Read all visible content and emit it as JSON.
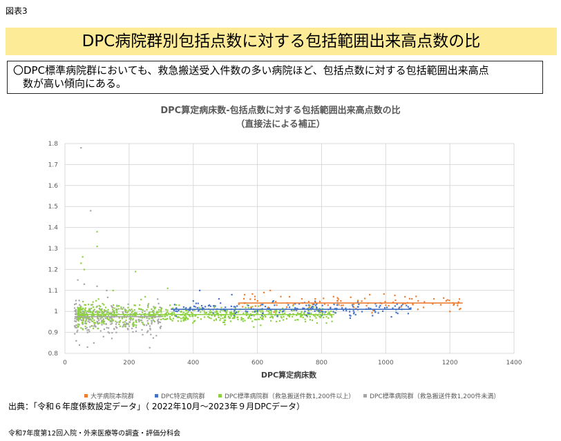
{
  "header": {
    "figure_label": "図表3"
  },
  "title_band": {
    "text": "DPC病院群別包括点数に対する包括範囲出来高点数の比"
  },
  "summary": {
    "line1": "〇DPC標準病院群においても、救急搬送受入件数の多い病院ほど、包括点数に対する包括範囲出来高点",
    "line2": "数が高い傾向にある。"
  },
  "source_note": "出典：「令和６年度係数設定データ」（ 2022年10月～2023年９月DPCデータ）",
  "footer": {
    "text": "令和7年度第12回入院・外来医療等の調査・評価分科会"
  },
  "colors": {
    "series_orange": "#ed7d31",
    "series_blue": "#4472c4",
    "series_green": "#8dd142",
    "series_gray": "#a6a6a6",
    "band": "#fdeb97"
  },
  "chart_data": {
    "type": "scatter",
    "title": "DPC算定病床数-包括点数に対する包括範囲出来高点数の比",
    "subtitle": "（直接法による補正）",
    "xlabel": "DPC算定病床数",
    "ylabel": "",
    "xlim": [
      0,
      1400
    ],
    "ylim": [
      0.8,
      1.8
    ],
    "x_ticks": [
      "0",
      "200",
      "400",
      "600",
      "800",
      "1000",
      "1200",
      "1400"
    ],
    "y_ticks": [
      "0.8",
      "0.9",
      "1",
      "1.1",
      "1.2",
      "1.3",
      "1.4",
      "1.5",
      "1.6",
      "1.7",
      "1.8"
    ],
    "grid": true,
    "legend_position": "bottom",
    "series": [
      {
        "name": "大学病院本院群",
        "color": "#ed7d31",
        "x_range": [
          540,
          1240
        ],
        "y_mean": 1.04,
        "y_spread": 0.04,
        "trend": [
          [
            540,
            1.04
          ],
          [
            1240,
            1.04
          ]
        ],
        "points": [
          [
            560,
            1.08
          ],
          [
            600,
            1.05
          ],
          [
            620,
            1.09
          ],
          [
            640,
            1.1
          ],
          [
            700,
            1.07
          ],
          [
            740,
            1.04
          ],
          [
            780,
            1.06
          ],
          [
            820,
            1.03
          ],
          [
            860,
            1.05
          ],
          [
            900,
            1.02
          ],
          [
            950,
            1.08
          ],
          [
            1000,
            1.03
          ],
          [
            1060,
            1.07
          ],
          [
            1100,
            1.01
          ],
          [
            1150,
            1.06
          ],
          [
            1200,
            1.0
          ],
          [
            1230,
            1.01
          ],
          [
            580,
            1.02
          ],
          [
            660,
            1.03
          ],
          [
            720,
            1.01
          ]
        ]
      },
      {
        "name": "DPC特定病院群",
        "color": "#4472c4",
        "x_range": [
          330,
          1080
        ],
        "y_mean": 1.01,
        "y_spread": 0.03,
        "trend": [
          [
            330,
            1.01
          ],
          [
            1080,
            1.01
          ]
        ],
        "points": [
          [
            350,
            1.0
          ],
          [
            400,
            1.05
          ],
          [
            420,
            1.1
          ],
          [
            450,
            1.03
          ],
          [
            480,
            1.06
          ],
          [
            500,
            1.02
          ],
          [
            520,
            1.08
          ],
          [
            560,
            1.04
          ],
          [
            600,
            1.0
          ],
          [
            650,
            1.05
          ],
          [
            700,
            1.02
          ],
          [
            760,
            1.03
          ],
          [
            800,
            1.0
          ],
          [
            850,
            1.04
          ],
          [
            900,
            0.99
          ],
          [
            980,
            1.02
          ],
          [
            1050,
            1.01
          ],
          [
            1070,
            0.99
          ]
        ]
      },
      {
        "name": "DPC標準病院群（救急搬送件数1,200件以上）",
        "color": "#8dd142",
        "x_range": [
          40,
          840
        ],
        "y_mean": 0.985,
        "y_spread": 0.035,
        "trend": [
          [
            40,
            0.985
          ],
          [
            840,
            0.985
          ]
        ],
        "points": [
          [
            50,
            1.23
          ],
          [
            55,
            1.26
          ],
          [
            100,
            1.38
          ],
          [
            100,
            1.31
          ],
          [
            60,
            1.2
          ],
          [
            220,
            1.19
          ],
          [
            150,
            1.1
          ],
          [
            250,
            1.07
          ],
          [
            320,
            1.11
          ],
          [
            400,
            1.05
          ],
          [
            450,
            0.97
          ],
          [
            500,
            1.0
          ],
          [
            550,
            0.96
          ],
          [
            600,
            0.99
          ],
          [
            700,
            0.98
          ],
          [
            800,
            0.98
          ],
          [
            820,
            0.99
          ]
        ]
      },
      {
        "name": "DPC標準病院群（救急搬送件数1,200件未満）",
        "color": "#a6a6a6",
        "x_range": [
          30,
          300
        ],
        "y_mean": 0.965,
        "y_spread": 0.06,
        "trend": [
          [
            30,
            0.975
          ],
          [
            300,
            0.975
          ]
        ],
        "points": [
          [
            50,
            1.78
          ],
          [
            80,
            1.48
          ],
          [
            40,
            1.15
          ],
          [
            60,
            1.13
          ],
          [
            100,
            1.12
          ],
          [
            130,
            1.1
          ],
          [
            35,
            0.86
          ],
          [
            45,
            0.84
          ],
          [
            70,
            0.83
          ],
          [
            90,
            0.85
          ],
          [
            120,
            0.88
          ],
          [
            160,
            0.9
          ],
          [
            200,
            0.93
          ],
          [
            260,
            0.94
          ]
        ]
      }
    ]
  }
}
